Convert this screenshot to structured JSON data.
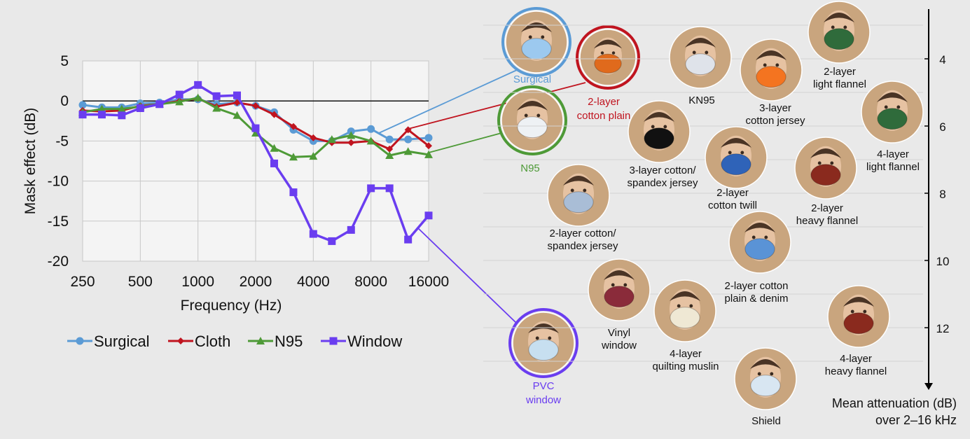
{
  "chart_data": {
    "type": "line",
    "xlabel": "Frequency (Hz)",
    "ylabel": "Mask effect (dB)",
    "x_scale": "log",
    "xlim": [
      250,
      16000
    ],
    "ylim": [
      -20,
      5
    ],
    "x_ticks": [
      "250",
      "500",
      "1000",
      "2000",
      "4000",
      "8000",
      "16000"
    ],
    "y_ticks": [
      "5",
      "0",
      "-5",
      "-10",
      "-15",
      "-20"
    ],
    "legend_position": "bottom",
    "x": [
      250,
      315,
      400,
      500,
      630,
      800,
      1000,
      1250,
      1600,
      2000,
      2500,
      3150,
      4000,
      5000,
      6300,
      8000,
      10000,
      12500,
      16000
    ],
    "series": [
      {
        "name": "Surgical",
        "color": "#5b9bd5",
        "marker": "circle",
        "values": [
          -0.5,
          -0.8,
          -0.8,
          -0.3,
          -0.2,
          0.2,
          0.2,
          -0.4,
          -0.2,
          -0.6,
          -1.4,
          -3.6,
          -5.0,
          -5.0,
          -3.8,
          -3.5,
          -4.8,
          -4.8,
          -4.6
        ]
      },
      {
        "name": "Cloth",
        "color": "#c0141f",
        "marker": "diamond",
        "values": [
          -1.2,
          -1.3,
          -1.2,
          -0.6,
          -0.4,
          0.0,
          0.3,
          -0.7,
          -0.2,
          -0.6,
          -1.7,
          -3.2,
          -4.6,
          -5.2,
          -5.2,
          -5.0,
          -6.0,
          -3.6,
          -5.6
        ]
      },
      {
        "name": "N95",
        "color": "#4e9a37",
        "marker": "triangle",
        "values": [
          -1.4,
          -1.0,
          -1.0,
          -0.7,
          -0.4,
          -0.1,
          0.4,
          -0.9,
          -1.8,
          -4.0,
          -5.9,
          -7.0,
          -6.9,
          -4.8,
          -4.3,
          -5.0,
          -6.8,
          -6.3,
          -6.7
        ]
      },
      {
        "name": "Window",
        "color": "#6a3df0",
        "marker": "square",
        "values": [
          -1.7,
          -1.7,
          -1.8,
          -0.9,
          -0.4,
          0.8,
          2.0,
          0.6,
          0.7,
          -3.4,
          -7.8,
          -11.4,
          -16.6,
          -17.5,
          -16.1,
          -10.9,
          -10.9,
          -17.3,
          -14.3
        ]
      }
    ]
  },
  "callouts": [
    {
      "label": "Surgical",
      "color": "#5b9bd5"
    },
    {
      "label": "2-layer\ncotton plain",
      "color": "#c0141f"
    },
    {
      "label": "N95",
      "color": "#4e9a37"
    },
    {
      "label": "PVC\nwindow",
      "color": "#6a3df0"
    }
  ],
  "attenuation_scale": {
    "ticks": [
      "4",
      "6",
      "8",
      "10",
      "12"
    ],
    "title_line1": "Mean attenuation (dB)",
    "title_line2": "over 2–16 kHz"
  },
  "masks": [
    {
      "label": "KN95",
      "mask_color": "#dfe3ea"
    },
    {
      "label": "3-layer\ncotton jersey",
      "mask_color": "#f47420"
    },
    {
      "label": "2-layer\nlight flannel",
      "mask_color": "#2f6b3b"
    },
    {
      "label": "4-layer\nlight flannel",
      "mask_color": "#2f6b3b"
    },
    {
      "label": "3-layer cotton/\nspandex jersey",
      "mask_color": "#111111"
    },
    {
      "label": "2-layer\ncotton twill",
      "mask_color": "#2f63b8"
    },
    {
      "label": "2-layer\nheavy flannel",
      "mask_color": "#8a2a1e"
    },
    {
      "label": "2-layer cotton/\nspandex jersey",
      "mask_color": "#a9bdd6"
    },
    {
      "label": "2-layer cotton\nplain & denim",
      "mask_color": "#5a93d6"
    },
    {
      "label": "Vinyl\nwindow",
      "mask_color": "#8a2b3a"
    },
    {
      "label": "4-layer\nquilting muslin",
      "mask_color": "#efe8d4"
    },
    {
      "label": "4-layer\nheavy flannel",
      "mask_color": "#8a2a1e"
    },
    {
      "label": "Shield",
      "mask_color": "#d8e6f2"
    }
  ],
  "photo_masks": [
    {
      "name": "Surgical",
      "mask_color": "#9cc9ef"
    },
    {
      "name": "2-layer cotton plain",
      "mask_color": "#e06a1c"
    },
    {
      "name": "N95",
      "mask_color": "#eef1f4"
    },
    {
      "name": "PVC window",
      "mask_color": "#c7dff0"
    }
  ]
}
